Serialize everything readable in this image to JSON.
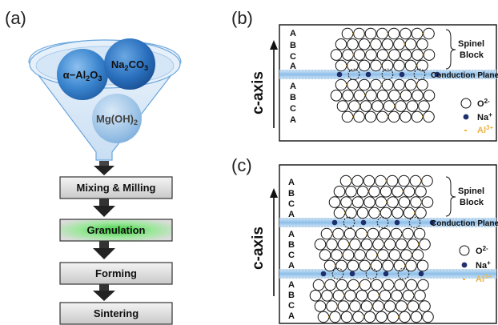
{
  "panels": {
    "a": {
      "label": "(a)",
      "ingredients": {
        "alumina": {
          "prefix": "α−Al",
          "sub1": "2",
          "mid": "O",
          "sub2": "3"
        },
        "soda": {
          "prefix": "Na",
          "sub1": "2",
          "mid": "CO",
          "sub2": "3"
        },
        "magnesia": {
          "prefix": "Mg(OH)",
          "sub1": "2"
        }
      },
      "steps": [
        "Mixing & Milling",
        "Granulation",
        "Forming",
        "Sintering"
      ]
    },
    "b": {
      "label": "(b)",
      "axis_label": "c-axis",
      "rows": [
        "A",
        "B",
        "C",
        "A",
        "A",
        "B",
        "C",
        "A"
      ],
      "block_label": [
        "Spinel",
        "Block"
      ],
      "plane_label": "Conduction Plane",
      "legend": [
        {
          "symbol": "O",
          "sup": "2-"
        },
        {
          "symbol": "Na",
          "sup": "+"
        },
        {
          "symbol": "Al",
          "sup": "3+"
        }
      ]
    },
    "c": {
      "label": "(c)",
      "axis_label": "c-axis",
      "rows_top": [
        "A",
        "B",
        "C",
        "A"
      ],
      "rows_mid": [
        "A",
        "B",
        "C",
        "A"
      ],
      "rows_bot": [
        "A",
        "B",
        "C",
        "A"
      ],
      "block_label": [
        "Spinel",
        "Block"
      ],
      "plane_label": "Conduction Plane",
      "legend": [
        {
          "symbol": "O",
          "sup": "2-"
        },
        {
          "symbol": "Na",
          "sup": "+"
        },
        {
          "symbol": "Al",
          "sup": "3+"
        }
      ]
    }
  },
  "colors": {
    "funnel_fill": "#dbe9f6",
    "sphere_blue": "#2f78c4",
    "sodium": "#1e2f6e",
    "aluminum": "#f0b53a",
    "plane": "#8fc0ea",
    "step_box": "#d9d9d9",
    "granulation_glow": "#5bd05b"
  }
}
